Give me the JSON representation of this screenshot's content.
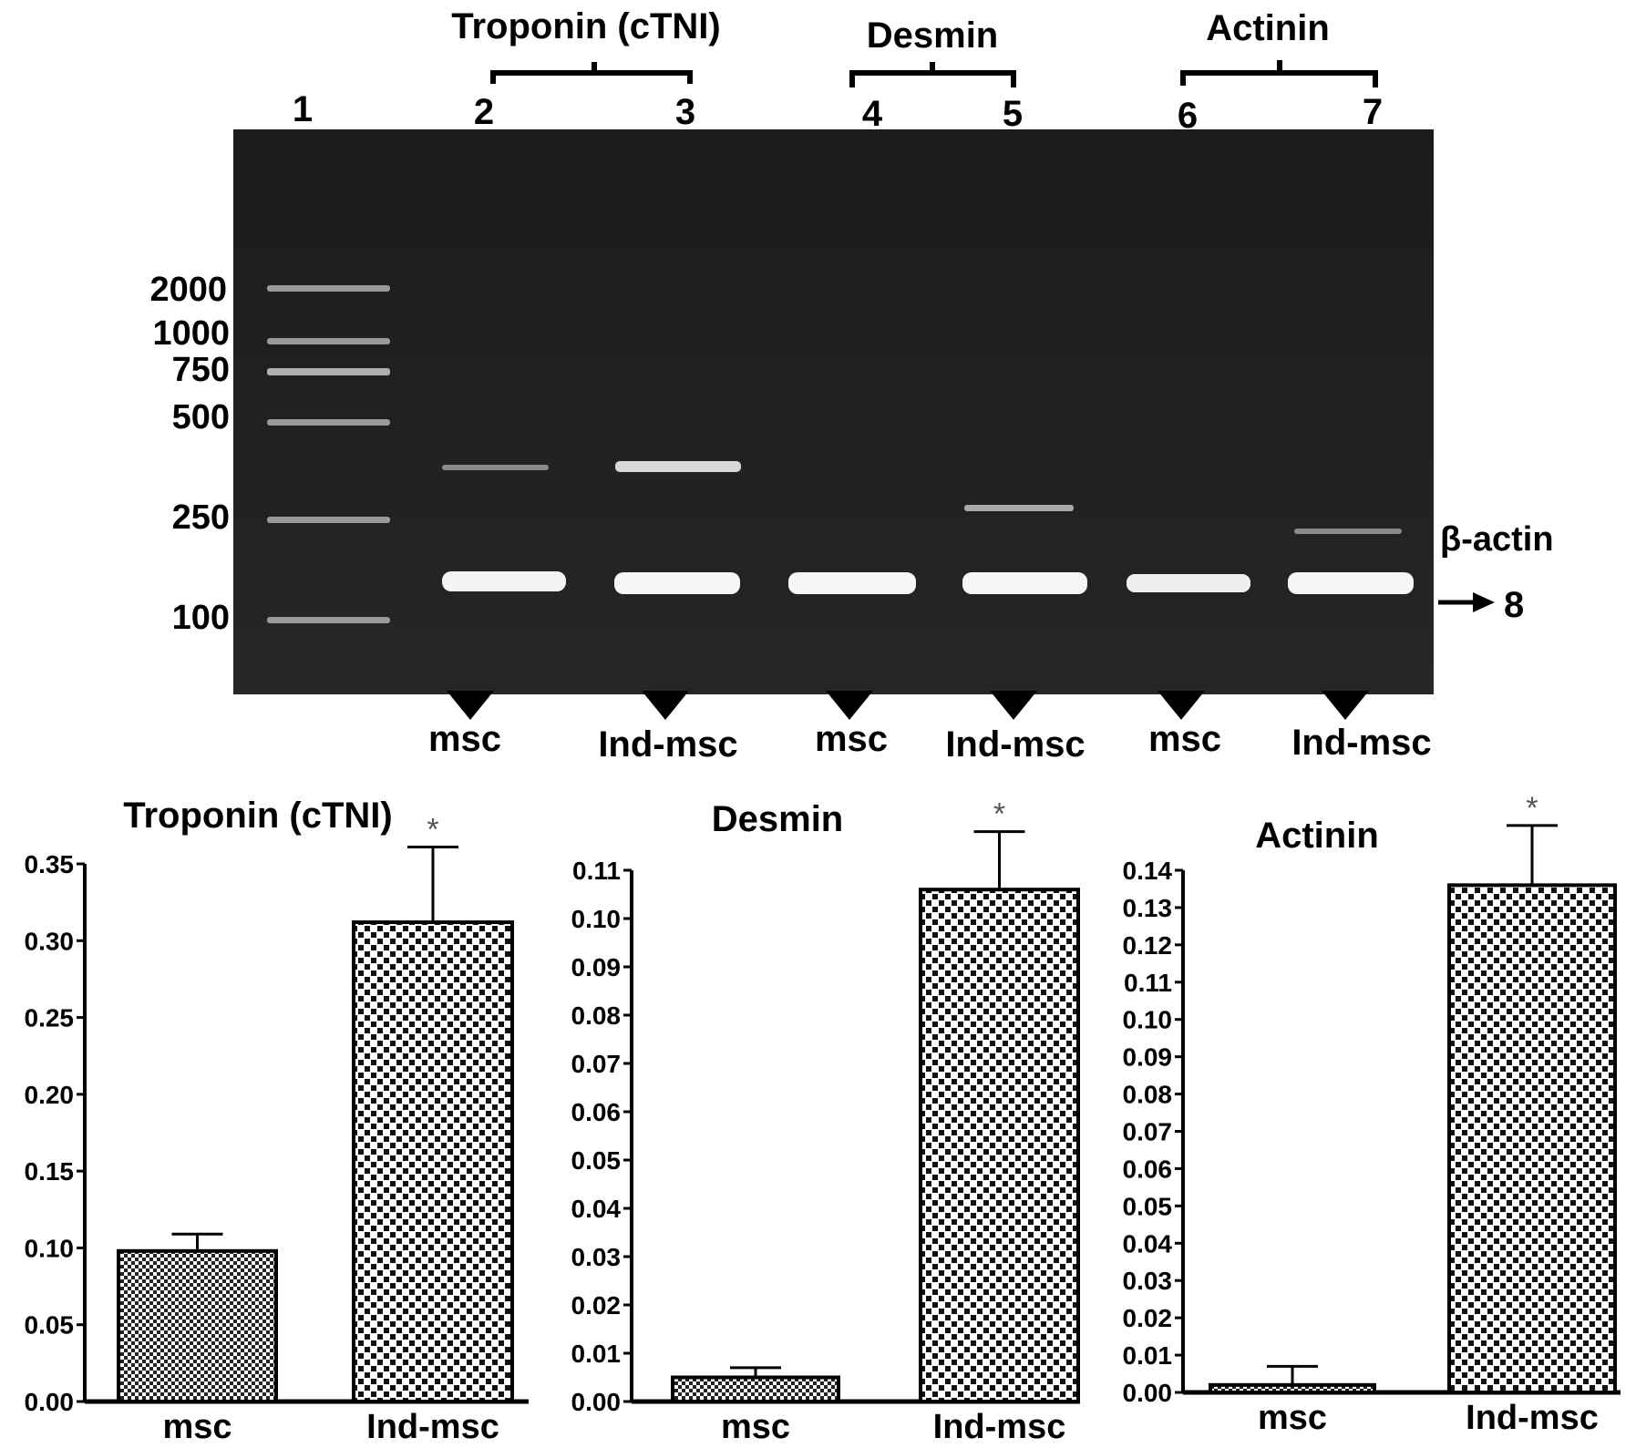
{
  "gel": {
    "groups": [
      {
        "label": "Troponin (cTNI)"
      },
      {
        "label": "Desmin"
      },
      {
        "label": "Actinin"
      }
    ],
    "lanes": [
      "1",
      "2",
      "3",
      "4",
      "5",
      "6",
      "7"
    ],
    "ladder_sizes": [
      "2000",
      "1000",
      "750",
      "500",
      "250",
      "100"
    ],
    "beta_actin_label": "β-actin",
    "beta_actin_lane": "8",
    "samples": [
      "msc",
      "Ind-msc",
      "msc",
      "Ind-msc",
      "msc",
      "Ind-msc"
    ]
  },
  "chart_data": [
    {
      "type": "bar",
      "title": "Troponin (cTNI)",
      "categories": [
        "msc",
        "Ind-msc"
      ],
      "values": [
        0.098,
        0.312
      ],
      "errors": [
        0.011,
        0.049
      ],
      "significance": [
        "",
        "*"
      ],
      "ylim": [
        0,
        0.35
      ],
      "yticks": [
        "0.00",
        "0.05",
        "0.10",
        "0.15",
        "0.20",
        "0.25",
        "0.30",
        "0.35"
      ],
      "xlabel": "",
      "ylabel": ""
    },
    {
      "type": "bar",
      "title": "Desmin",
      "categories": [
        "msc",
        "Ind-msc"
      ],
      "values": [
        0.005,
        0.106
      ],
      "errors": [
        0.002,
        0.012
      ],
      "significance": [
        "",
        "*"
      ],
      "ylim": [
        0,
        0.11
      ],
      "yticks": [
        "0.00",
        "0.01",
        "0.02",
        "0.03",
        "0.04",
        "0.05",
        "0.06",
        "0.07",
        "0.08",
        "0.09",
        "0.10",
        "0.11"
      ],
      "xlabel": "",
      "ylabel": ""
    },
    {
      "type": "bar",
      "title": "Actinin",
      "categories": [
        "msc",
        "Ind-msc"
      ],
      "values": [
        0.002,
        0.136
      ],
      "errors": [
        0.005,
        0.016
      ],
      "significance": [
        "",
        "*"
      ],
      "ylim": [
        0,
        0.14
      ],
      "yticks": [
        "0.00",
        "0.01",
        "0.02",
        "0.03",
        "0.04",
        "0.05",
        "0.06",
        "0.07",
        "0.08",
        "0.09",
        "0.10",
        "0.11",
        "0.12",
        "0.13",
        "0.14"
      ],
      "xlabel": "",
      "ylabel": ""
    }
  ]
}
